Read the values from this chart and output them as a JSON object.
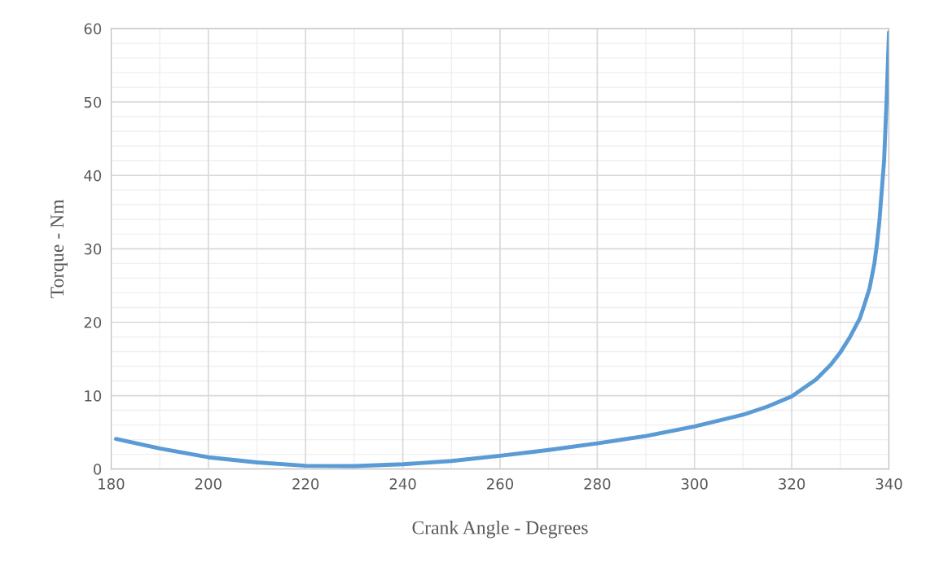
{
  "chart_data": {
    "type": "line",
    "xlabel": "Crank Angle - Degrees",
    "ylabel": "Torque - Nm",
    "xlim": [
      180,
      340
    ],
    "xticks": [
      180,
      200,
      220,
      240,
      260,
      280,
      300,
      320,
      340
    ],
    "ylim": [
      0,
      60
    ],
    "yticks": [
      0,
      10,
      20,
      30,
      40,
      50,
      60
    ],
    "grid": true,
    "marker": "none",
    "line_style": "solid",
    "series": [
      {
        "color": "#5b9bd5",
        "x": [
          181,
          190,
          200,
          210,
          220,
          230,
          240,
          250,
          260,
          270,
          280,
          290,
          300,
          310,
          315,
          320,
          325,
          328,
          330,
          332,
          334,
          335,
          336,
          337,
          337.5,
          338,
          338.6,
          339,
          339.5,
          340
        ],
        "values": [
          4.1,
          2.8,
          1.6,
          0.9,
          0.45,
          0.4,
          0.65,
          1.1,
          1.8,
          2.6,
          3.5,
          4.5,
          5.8,
          7.4,
          8.5,
          9.9,
          12.2,
          14.2,
          15.9,
          18,
          20.5,
          22.5,
          24.6,
          28,
          30.5,
          33.5,
          38.6,
          42,
          50,
          59.5
        ]
      }
    ]
  }
}
